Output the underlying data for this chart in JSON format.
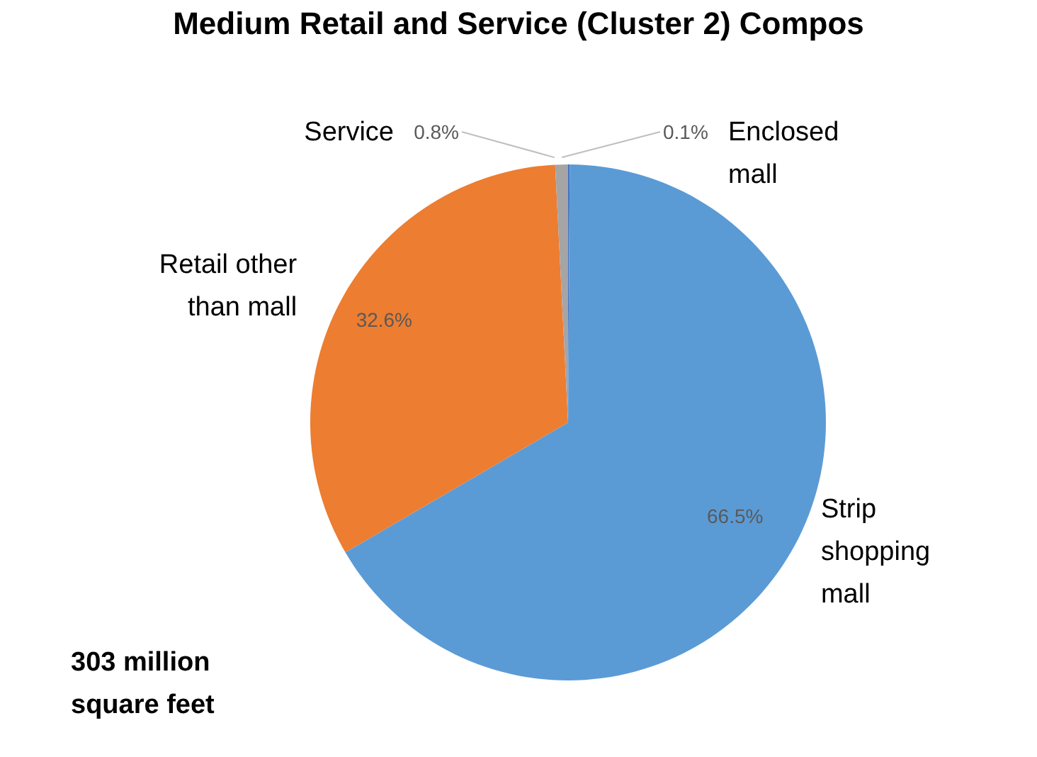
{
  "chart_data": {
    "type": "pie",
    "title": "Medium Retail and Service (Cluster 2) Compos",
    "categories": [
      "Enclosed mall",
      "Strip shopping mall",
      "Retail other than mall",
      "Service"
    ],
    "values": [
      0.1,
      66.5,
      32.6,
      0.8
    ],
    "colors": [
      "#4472c4",
      "#5b9bd5",
      "#ed7d31",
      "#a5a5a5"
    ],
    "value_labels": [
      "0.1%",
      "66.5%",
      "32.6%",
      "0.8%"
    ],
    "annotations": [
      "303 million square feet"
    ],
    "legend": false
  }
}
